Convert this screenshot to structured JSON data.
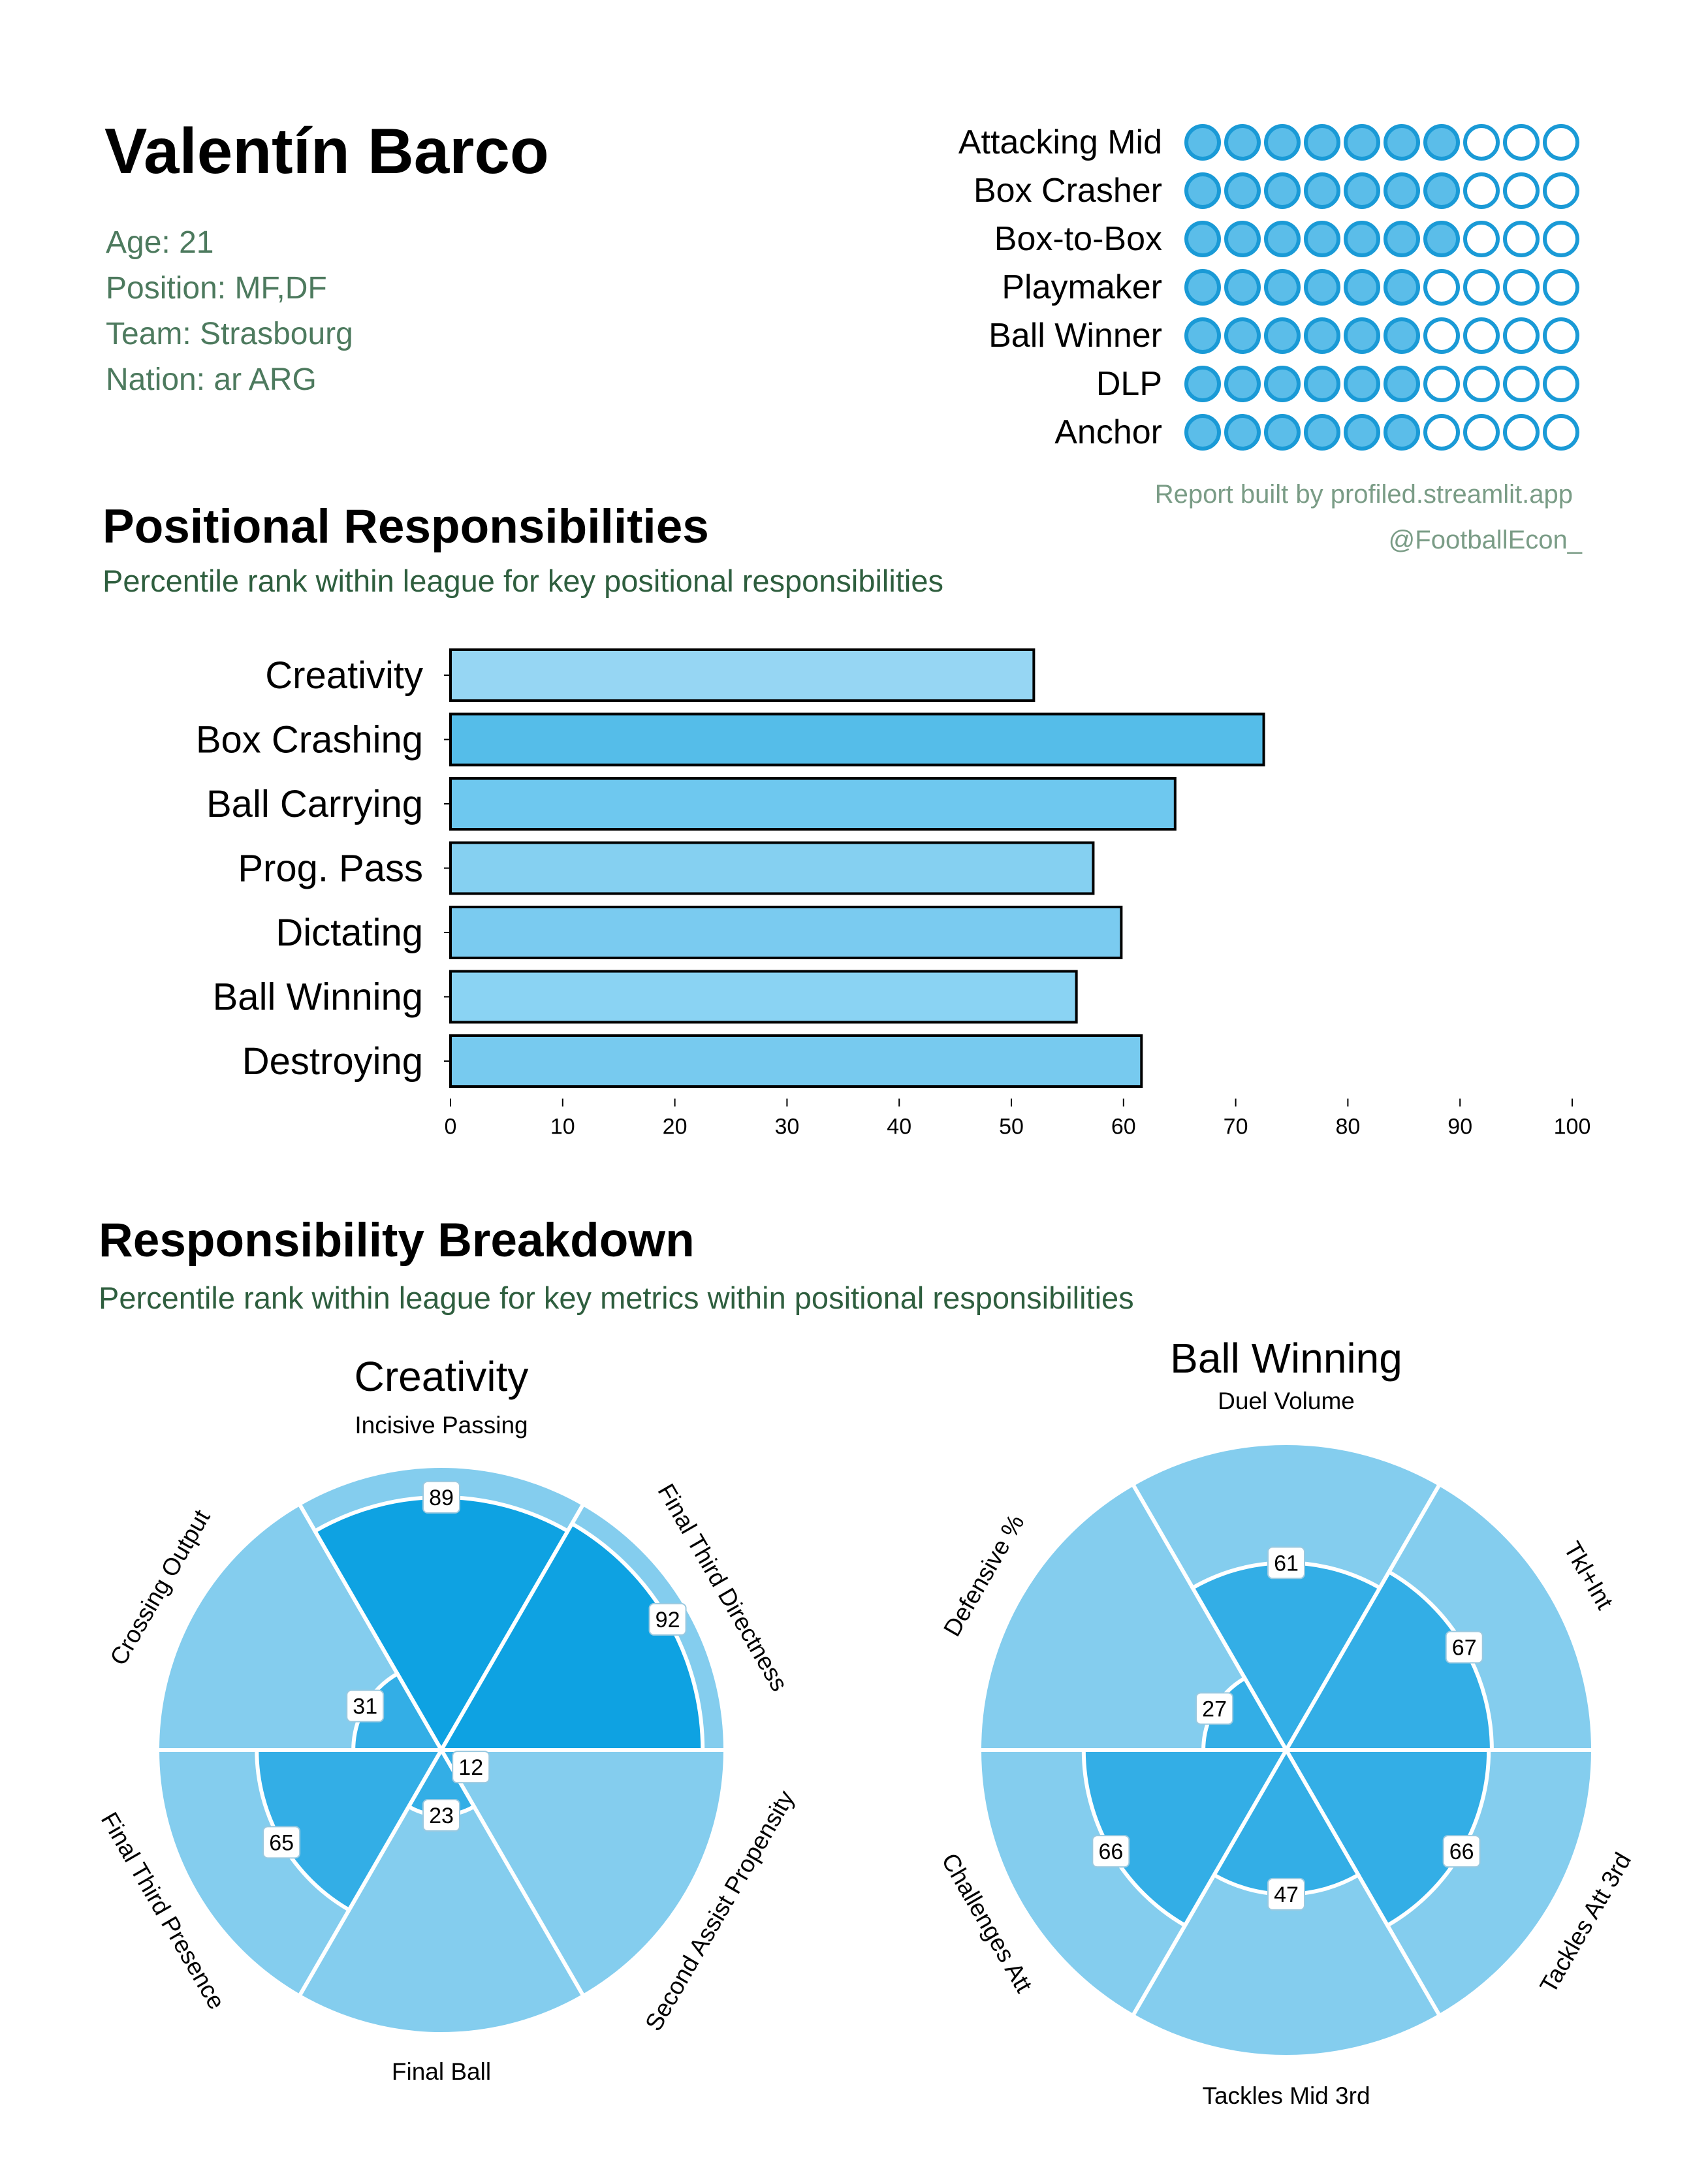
{
  "player": {
    "name": "Valentín Barco",
    "age": "Age: 21",
    "position": "Position: MF,DF",
    "team": "Team: Strasbourg",
    "nation": "Nation: ar ARG"
  },
  "archetypes": [
    {
      "label": "Attacking Mid",
      "filled": 7,
      "total": 10
    },
    {
      "label": "Box Crasher",
      "filled": 7,
      "total": 10
    },
    {
      "label": "Box-to-Box",
      "filled": 7,
      "total": 10
    },
    {
      "label": "Playmaker",
      "filled": 6,
      "total": 10
    },
    {
      "label": "Ball Winner",
      "filled": 6,
      "total": 10
    },
    {
      "label": "DLP",
      "filled": 6,
      "total": 10
    },
    {
      "label": "Anchor",
      "filled": 6,
      "total": 10
    }
  ],
  "credits": {
    "report": "Report built by profiled.streamlit.app",
    "handle": "@FootballEcon_"
  },
  "sections": {
    "positional_title": "Positional Responsibilities",
    "positional_subtitle": "Percentile rank within league for key positional responsibilities",
    "breakdown_title": "Responsibility Breakdown",
    "breakdown_subtitle": "Percentile rank within league for key metrics within positional responsibilities"
  },
  "colors": {
    "dot_fill": "#5bbde9",
    "dot_stroke": "#1a9ad6",
    "bar_stroke": "#000000",
    "wedge_bg": "#84cdee",
    "wedge_mid": "#33aee6",
    "wedge_high": "#0ea2e2",
    "subtitle": "#2e5e3e"
  },
  "chart_data": [
    {
      "type": "bar",
      "orientation": "horizontal",
      "title": "Positional Responsibilities",
      "categories": [
        "Creativity",
        "Box Crashing",
        "Ball Carrying",
        "Prog. Pass",
        "Dictating",
        "Ball Winning",
        "Destroying"
      ],
      "values": [
        52,
        72.5,
        64.6,
        57.3,
        59.8,
        55.8,
        61.6
      ],
      "colors": [
        "#96d6f3",
        "#55bde9",
        "#6ec8ef",
        "#85d0f1",
        "#7acbf0",
        "#8ad3f3",
        "#77caef"
      ],
      "xlim": [
        0,
        100
      ],
      "xticks": [
        0,
        10,
        20,
        30,
        40,
        50,
        60,
        70,
        80,
        90,
        100
      ]
    },
    {
      "type": "pie",
      "subtype": "polar-bar",
      "title": "Creativity",
      "metrics": [
        {
          "label": "Incisive Passing",
          "value": 89
        },
        {
          "label": "Final Third Directness",
          "value": 92
        },
        {
          "label": "Second Assist Propensity",
          "value": 12
        },
        {
          "label": "Final Ball",
          "value": 23
        },
        {
          "label": "Final Third Presence",
          "value": 65
        },
        {
          "label": "Crossing Output",
          "value": 31
        }
      ],
      "range": [
        0,
        100
      ]
    },
    {
      "type": "pie",
      "subtype": "polar-bar",
      "title": "Ball Winning",
      "metrics": [
        {
          "label": "Duel Volume",
          "value": 61
        },
        {
          "label": "Tkl+Int",
          "value": 67
        },
        {
          "label": "Tackles Att 3rd",
          "value": 66
        },
        {
          "label": "Tackles Mid 3rd",
          "value": 47
        },
        {
          "label": "Challenges Att",
          "value": 66
        },
        {
          "label": "Defensive %",
          "value": 27
        }
      ],
      "range": [
        0,
        100
      ]
    }
  ]
}
